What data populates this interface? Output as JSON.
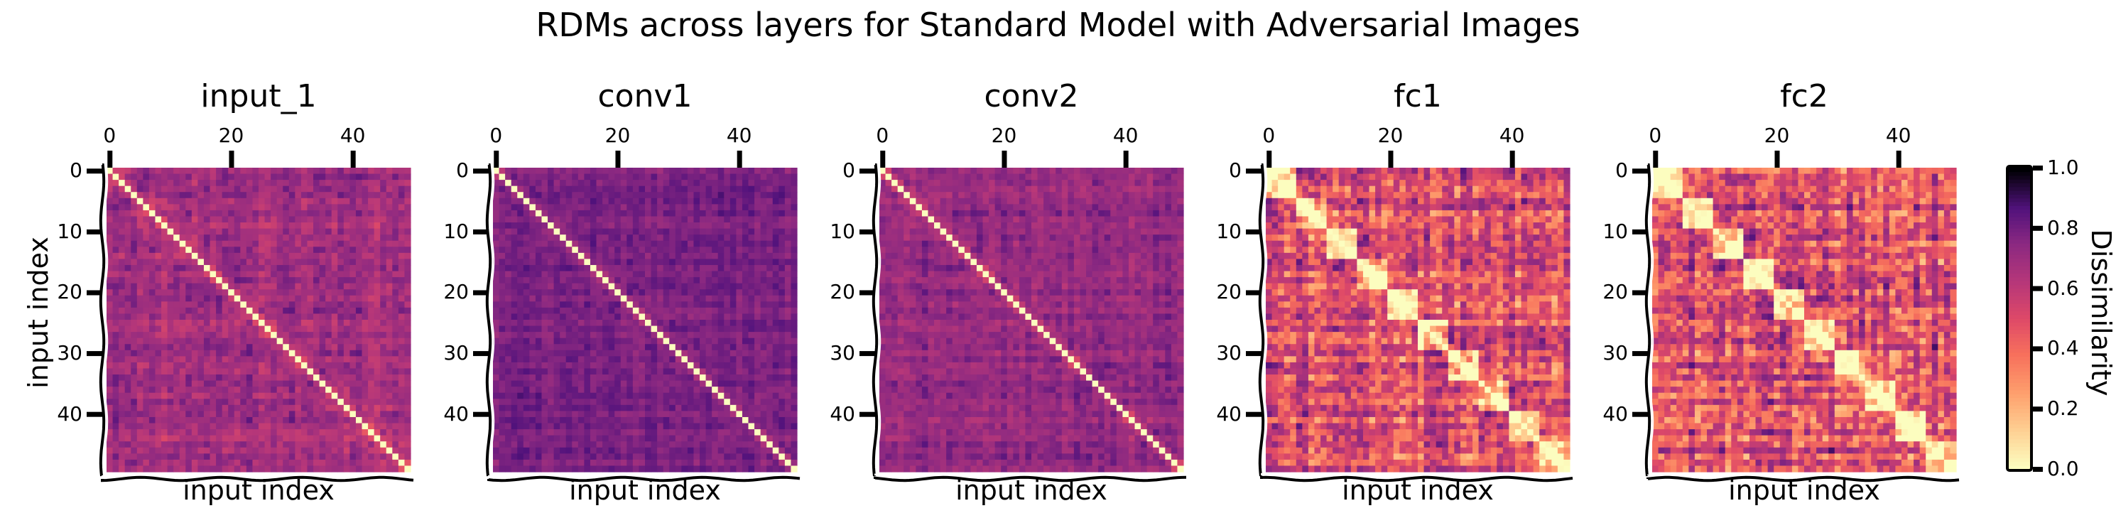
{
  "figure": {
    "title": "RDMs across layers for Standard Model with Adversarial Images"
  },
  "chart_data": {
    "type": "heatmap",
    "n": 50,
    "xlabel": "input index",
    "ylabel": "input index",
    "x_ticks": [
      0,
      20,
      40
    ],
    "y_ticks": [
      0,
      10,
      20,
      30,
      40
    ],
    "value_range": [
      0.0,
      1.0
    ],
    "colormap": "magma_r",
    "colorbar": {
      "label": "Dissimilarity",
      "ticks": [
        "0.0",
        "0.2",
        "0.4",
        "0.6",
        "0.8",
        "1.0"
      ]
    },
    "panels": [
      {
        "name": "input_1",
        "mean": 0.68,
        "noise": 0.1,
        "block_strength": 0.02
      },
      {
        "name": "conv1",
        "mean": 0.78,
        "noise": 0.06,
        "block_strength": 0.0
      },
      {
        "name": "conv2",
        "mean": 0.73,
        "noise": 0.08,
        "block_strength": 0.01
      },
      {
        "name": "fc1",
        "mean": 0.52,
        "noise": 0.22,
        "block_strength": 0.18
      },
      {
        "name": "fc2",
        "mean": 0.5,
        "noise": 0.24,
        "block_strength": 0.22
      }
    ]
  }
}
